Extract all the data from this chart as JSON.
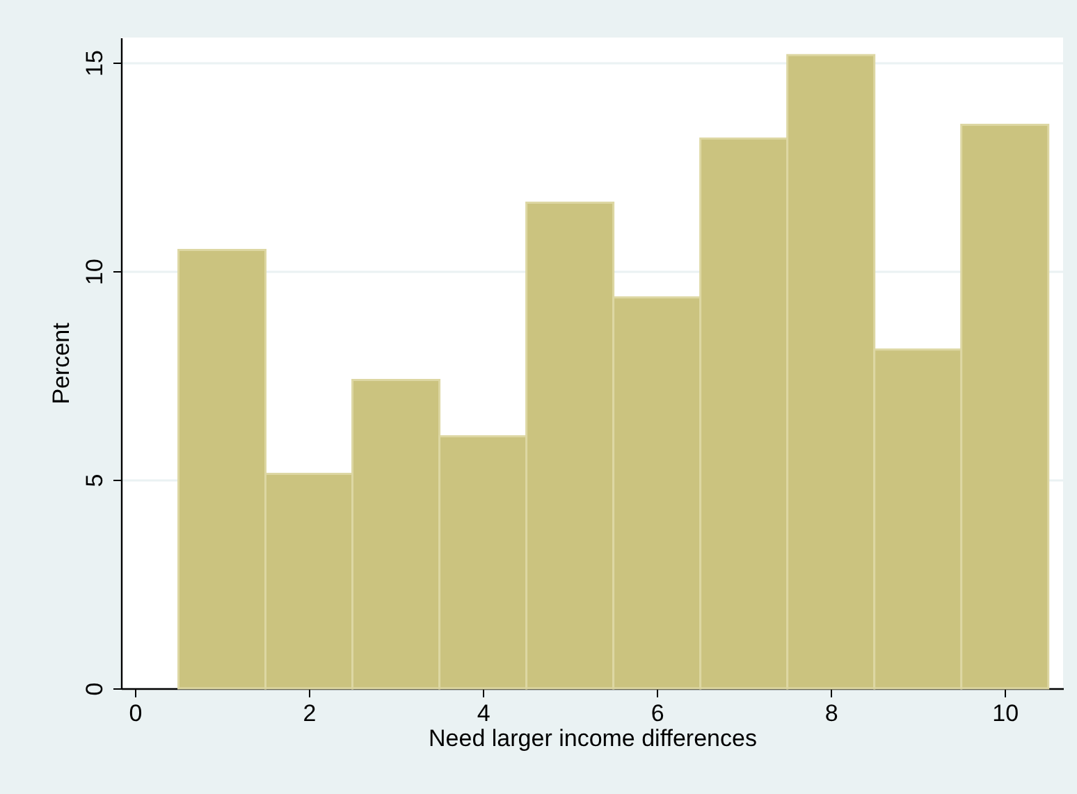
{
  "chart_data": {
    "type": "histogram",
    "xlabel": "Need larger income differences",
    "ylabel": "Percent",
    "bins": [
      0.5,
      1.5,
      2.5,
      3.5,
      4.5,
      5.5,
      6.5,
      7.5,
      8.5,
      9.5,
      10.5
    ],
    "values": [
      10.51,
      5.14,
      7.39,
      6.04,
      11.64,
      9.37,
      13.18,
      15.18,
      8.12,
      13.51
    ],
    "color": "#cbc37f",
    "xlim": [
      -0.16,
      10.67
    ],
    "xticks": [
      0,
      2,
      4,
      6,
      8,
      10
    ],
    "ylim": [
      0,
      15.6
    ],
    "yticks": [
      0,
      5,
      10,
      15
    ],
    "grid": "y"
  }
}
